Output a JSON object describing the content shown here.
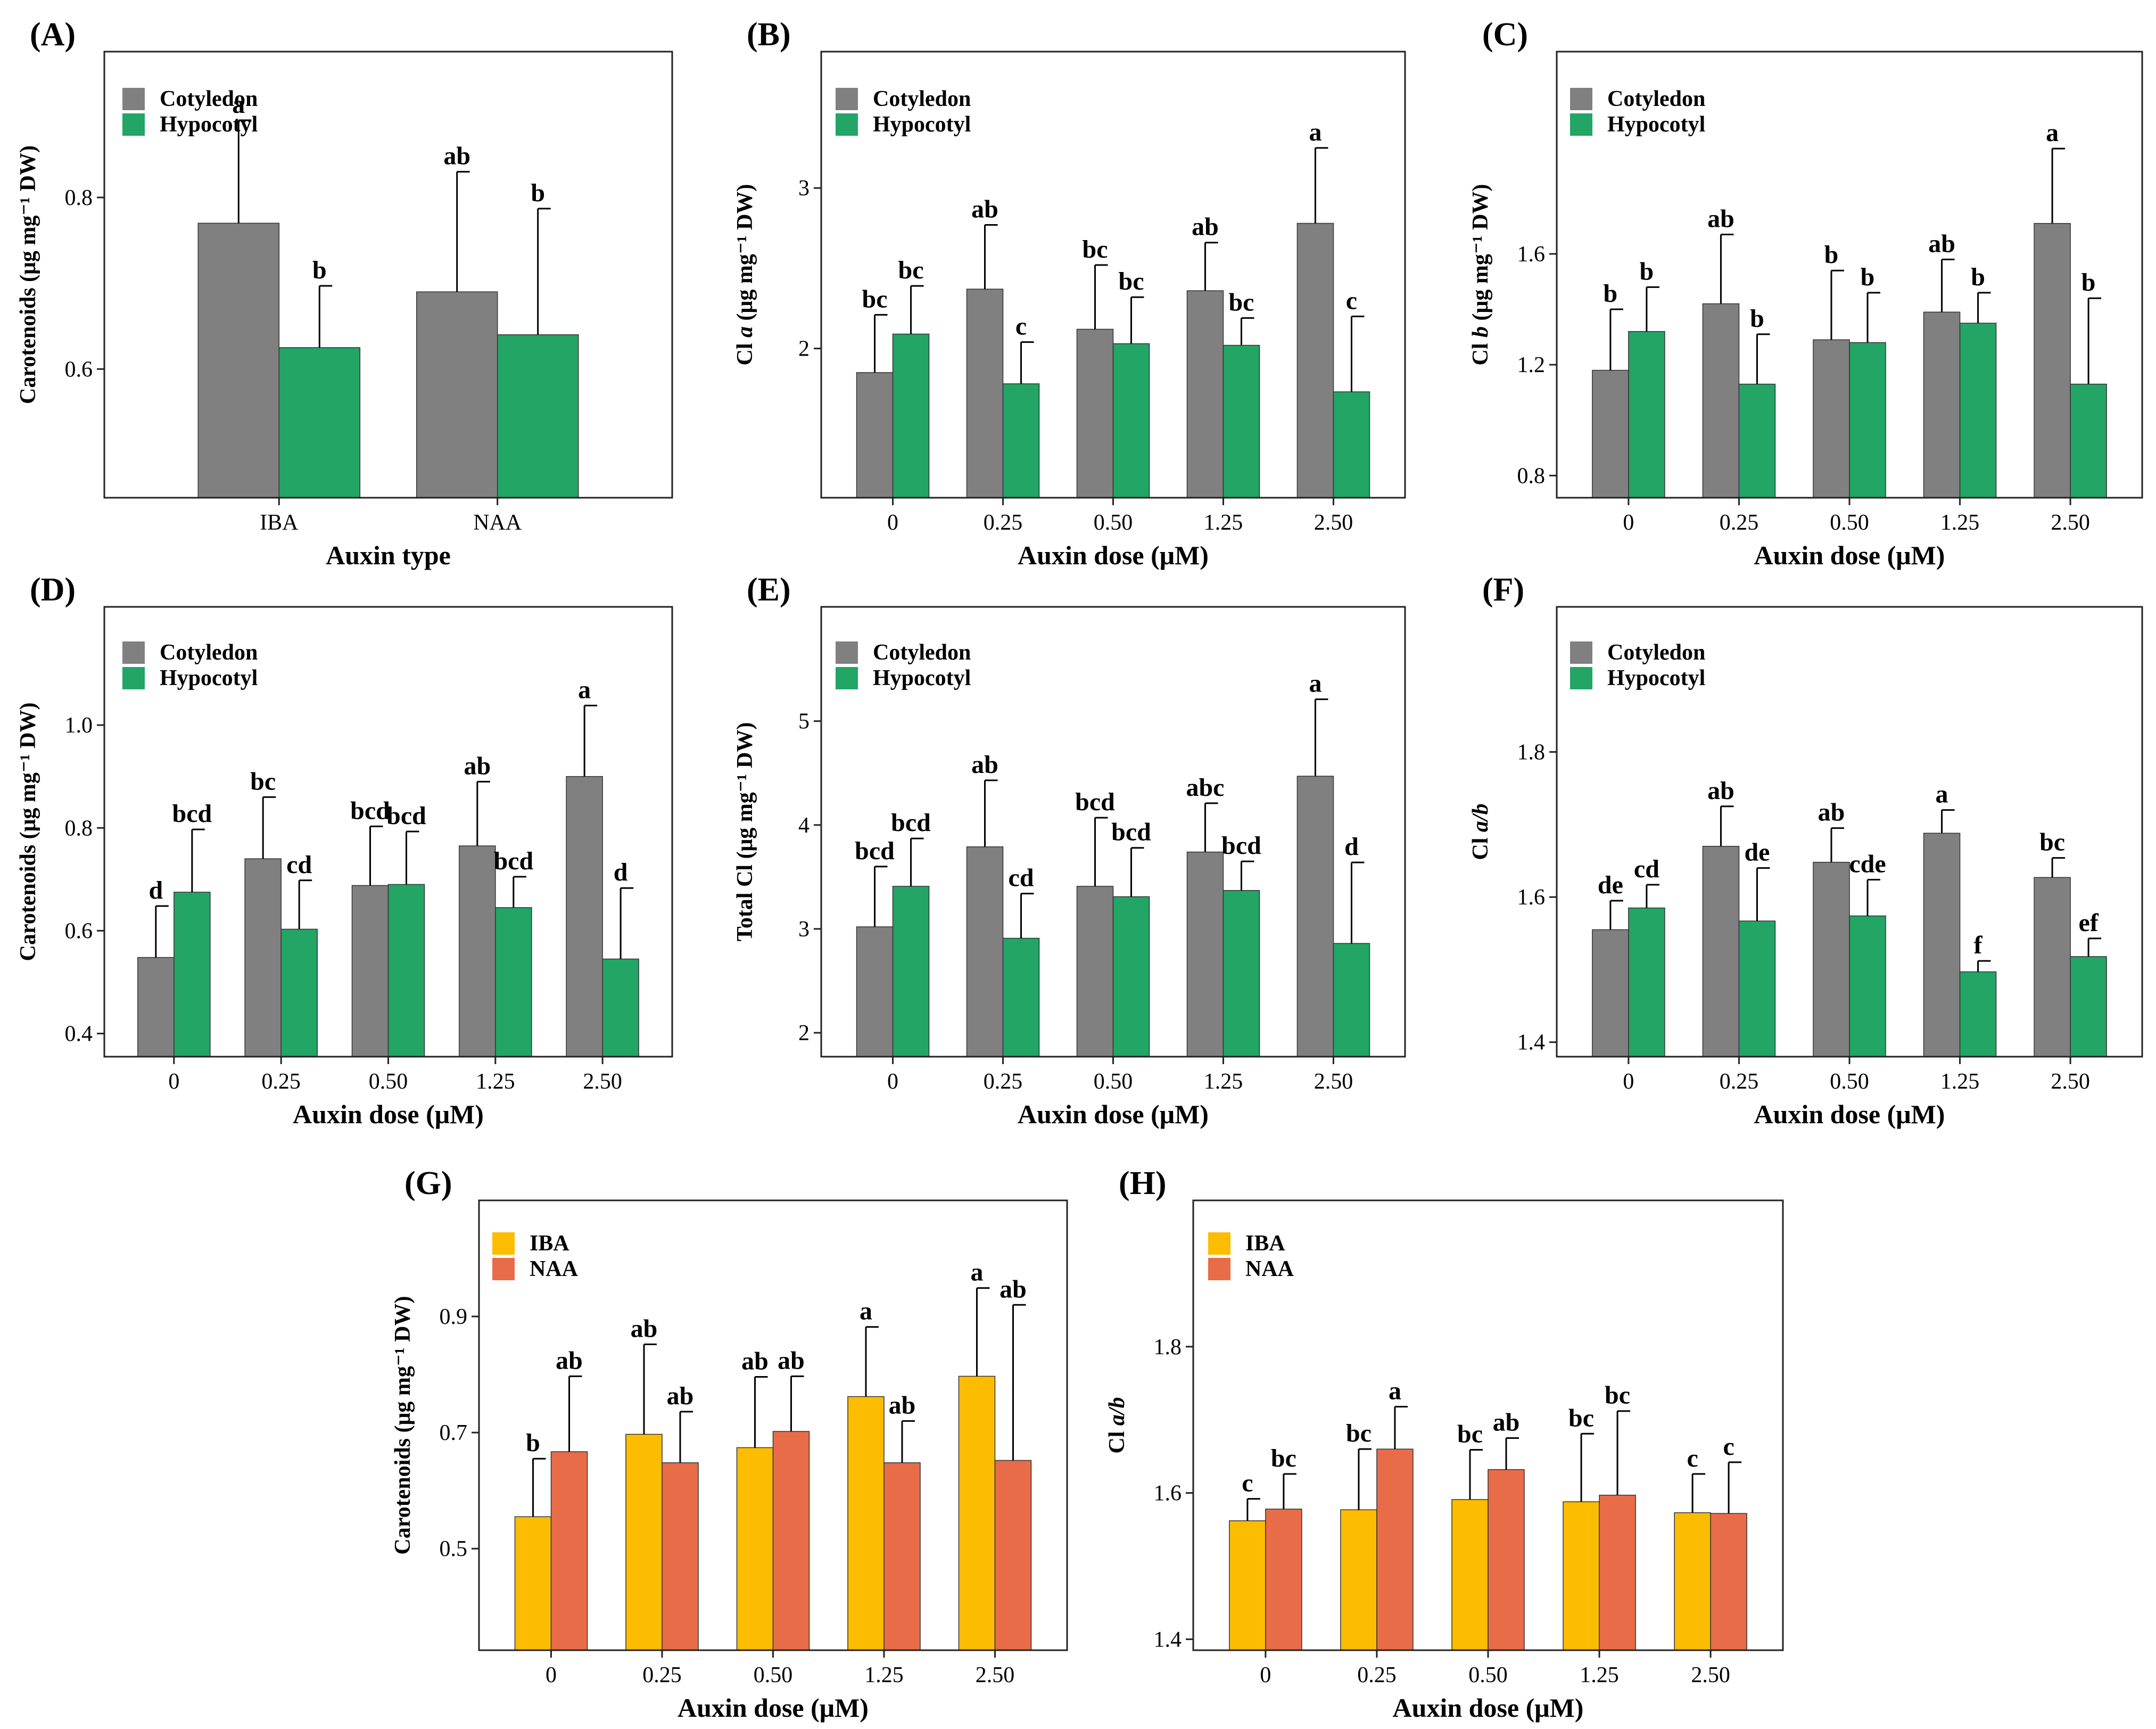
{
  "chart_data": [
    {
      "panel": "(A)",
      "type": "bar",
      "ylabel": "Carotenoids (μg mg⁻¹ DW)",
      "xlabel": "Auxin type",
      "categories": [
        "IBA",
        "NAA"
      ],
      "ylim": [
        0.45,
        0.97
      ],
      "yticks": [
        0.6,
        0.8
      ],
      "tick_decimals": 1,
      "series": [
        {
          "name": "Cotyledon",
          "color": "#808080",
          "values": [
            0.77,
            0.69
          ],
          "errors": [
            0.12,
            0.14
          ],
          "labels": [
            "a",
            "ab"
          ]
        },
        {
          "name": "Hypocotyl",
          "color": "#22a565",
          "values": [
            0.625,
            0.64
          ],
          "errors": [
            0.072,
            0.147
          ],
          "labels": [
            "b",
            "b"
          ]
        }
      ]
    },
    {
      "panel": "(B)",
      "type": "bar",
      "ylabel": "Cl a (μg mg⁻¹ DW)",
      "xlabel": "Auxin dose (μM)",
      "categories": [
        "0",
        "0.25",
        "0.50",
        "1.25",
        "2.50"
      ],
      "ylim": [
        1.07,
        3.85
      ],
      "yticks": [
        2,
        3
      ],
      "tick_decimals": 0,
      "series": [
        {
          "name": "Cotyledon",
          "color": "#808080",
          "values": [
            1.85,
            2.37,
            2.12,
            2.36,
            2.78
          ],
          "errors": [
            0.36,
            0.4,
            0.4,
            0.3,
            0.47
          ],
          "labels": [
            "bc",
            "ab",
            "bc",
            "ab",
            "a"
          ]
        },
        {
          "name": "Hypocotyl",
          "color": "#22a565",
          "values": [
            2.09,
            1.78,
            2.03,
            2.02,
            1.73
          ],
          "errors": [
            0.3,
            0.26,
            0.29,
            0.17,
            0.47
          ],
          "labels": [
            "bc",
            "c",
            "bc",
            "bc",
            "c"
          ]
        }
      ]
    },
    {
      "panel": "(C)",
      "type": "bar",
      "ylabel": "Cl b (μg mg⁻¹ DW)",
      "xlabel": "Auxin dose (μM)",
      "categories": [
        "0",
        "0.25",
        "0.50",
        "1.25",
        "2.50"
      ],
      "ylim": [
        0.72,
        2.33
      ],
      "yticks": [
        0.8,
        1.2,
        1.6
      ],
      "tick_decimals": 1,
      "series": [
        {
          "name": "Cotyledon",
          "color": "#808080",
          "values": [
            1.18,
            1.42,
            1.29,
            1.39,
            1.71
          ],
          "errors": [
            0.22,
            0.25,
            0.25,
            0.19,
            0.27
          ],
          "labels": [
            "b",
            "ab",
            "b",
            "ab",
            "a"
          ]
        },
        {
          "name": "Hypocotyl",
          "color": "#22a565",
          "values": [
            1.32,
            1.13,
            1.28,
            1.35,
            1.13
          ],
          "errors": [
            0.16,
            0.18,
            0.18,
            0.11,
            0.31
          ],
          "labels": [
            "b",
            "b",
            "b",
            "b",
            "b"
          ]
        }
      ]
    },
    {
      "panel": "(D)",
      "type": "bar",
      "ylabel": "Carotenoids (μg mg⁻¹ DW)",
      "xlabel": "Auxin dose (μM)",
      "categories": [
        "0",
        "0.25",
        "0.50",
        "1.25",
        "2.50"
      ],
      "ylim": [
        0.355,
        1.23
      ],
      "yticks": [
        0.4,
        0.6,
        0.8,
        1.0
      ],
      "tick_decimals": 1,
      "series": [
        {
          "name": "Cotyledon",
          "color": "#808080",
          "values": [
            0.548,
            0.74,
            0.688,
            0.765,
            0.9
          ],
          "errors": [
            0.1,
            0.12,
            0.115,
            0.125,
            0.138
          ],
          "labels": [
            "d",
            "bc",
            "bcd",
            "ab",
            "a"
          ]
        },
        {
          "name": "Hypocotyl",
          "color": "#22a565",
          "values": [
            0.675,
            0.603,
            0.69,
            0.645,
            0.545
          ],
          "errors": [
            0.122,
            0.095,
            0.103,
            0.06,
            0.138
          ],
          "labels": [
            "bcd",
            "cd",
            "bcd",
            "bcd",
            "d"
          ]
        }
      ]
    },
    {
      "panel": "(E)",
      "type": "bar",
      "ylabel": "Total Cl (μg mg⁻¹ DW)",
      "xlabel": "Auxin dose (μM)",
      "categories": [
        "0",
        "0.25",
        "0.50",
        "1.25",
        "2.50"
      ],
      "ylim": [
        1.77,
        6.1
      ],
      "yticks": [
        2,
        3,
        4,
        5
      ],
      "tick_decimals": 0,
      "series": [
        {
          "name": "Cotyledon",
          "color": "#808080",
          "values": [
            3.02,
            3.79,
            3.41,
            3.74,
            4.47
          ],
          "errors": [
            0.58,
            0.64,
            0.66,
            0.47,
            0.74
          ],
          "labels": [
            "bcd",
            "ab",
            "bcd",
            "abc",
            "a"
          ]
        },
        {
          "name": "Hypocotyl",
          "color": "#22a565",
          "values": [
            3.41,
            2.91,
            3.31,
            3.37,
            2.86
          ],
          "errors": [
            0.46,
            0.43,
            0.47,
            0.28,
            0.78
          ],
          "labels": [
            "bcd",
            "cd",
            "bcd",
            "bcd",
            "d"
          ]
        }
      ]
    },
    {
      "panel": "(F)",
      "type": "bar",
      "ylabel": "Cl a/b",
      "xlabel": "Auxin dose (μM)",
      "categories": [
        "0",
        "0.25",
        "0.50",
        "1.25",
        "2.50"
      ],
      "ylim": [
        1.38,
        2.0
      ],
      "yticks": [
        1.4,
        1.6,
        1.8
      ],
      "tick_decimals": 1,
      "series": [
        {
          "name": "Cotyledon",
          "color": "#808080",
          "values": [
            1.555,
            1.67,
            1.648,
            1.688,
            1.627
          ],
          "errors": [
            0.04,
            0.055,
            0.047,
            0.032,
            0.027
          ],
          "labels": [
            "de",
            "ab",
            "ab",
            "a",
            "bc"
          ]
        },
        {
          "name": "Hypocotyl",
          "color": "#22a565",
          "values": [
            1.585,
            1.567,
            1.574,
            1.497,
            1.518
          ],
          "errors": [
            0.032,
            0.073,
            0.05,
            0.015,
            0.025
          ],
          "labels": [
            "cd",
            "de",
            "cde",
            "f",
            "ef"
          ]
        }
      ]
    },
    {
      "panel": "(G)",
      "type": "bar",
      "ylabel": "Carotenoids (μg mg⁻¹ DW)",
      "xlabel": "Auxin dose (μM)",
      "categories": [
        "0",
        "0.25",
        "0.50",
        "1.25",
        "2.50"
      ],
      "ylim": [
        0.325,
        1.1
      ],
      "yticks": [
        0.5,
        0.7,
        0.9
      ],
      "tick_decimals": 1,
      "series": [
        {
          "name": "IBA",
          "color": "#fcbc00",
          "values": [
            0.555,
            0.697,
            0.674,
            0.762,
            0.797
          ],
          "errors": [
            0.1,
            0.155,
            0.122,
            0.12,
            0.152
          ],
          "labels": [
            "b",
            "ab",
            "ab",
            "a",
            "a"
          ]
        },
        {
          "name": "NAA",
          "color": "#e86c48",
          "values": [
            0.667,
            0.648,
            0.702,
            0.648,
            0.652
          ],
          "errors": [
            0.13,
            0.088,
            0.095,
            0.072,
            0.268
          ],
          "labels": [
            "ab",
            "ab",
            "ab",
            "ab",
            "ab"
          ]
        }
      ]
    },
    {
      "panel": "(H)",
      "type": "bar",
      "ylabel": "Cl a/b",
      "xlabel": "Auxin dose (μM)",
      "categories": [
        "0",
        "0.25",
        "0.50",
        "1.25",
        "2.50"
      ],
      "ylim": [
        1.385,
        2.0
      ],
      "yticks": [
        1.4,
        1.6,
        1.8
      ],
      "tick_decimals": 1,
      "series": [
        {
          "name": "IBA",
          "color": "#fcbc00",
          "values": [
            1.562,
            1.577,
            1.591,
            1.588,
            1.573
          ],
          "errors": [
            0.03,
            0.083,
            0.068,
            0.093,
            0.053
          ],
          "labels": [
            "c",
            "bc",
            "bc",
            "bc",
            "c"
          ]
        },
        {
          "name": "NAA",
          "color": "#e86c48",
          "values": [
            1.578,
            1.66,
            1.632,
            1.597,
            1.572
          ],
          "errors": [
            0.048,
            0.058,
            0.043,
            0.115,
            0.07
          ],
          "labels": [
            "bc",
            "a",
            "ab",
            "bc",
            "c"
          ]
        }
      ]
    }
  ]
}
